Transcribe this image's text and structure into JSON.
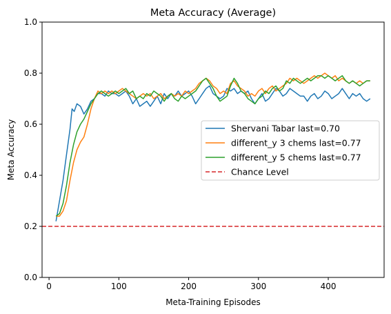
{
  "chart_data": {
    "type": "line",
    "title": "Meta Accuracy (Average)",
    "xlabel": "Meta-Training Episodes",
    "ylabel": "Meta Accuracy",
    "xlim": [
      -10,
      480
    ],
    "ylim": [
      0.0,
      1.0
    ],
    "xticks": [
      0,
      100,
      200,
      300,
      400
    ],
    "yticks": [
      0.0,
      0.2,
      0.4,
      0.6,
      0.8,
      1.0
    ],
    "xtick_labels": [
      "0",
      "100",
      "200",
      "300",
      "400"
    ],
    "ytick_labels": [
      "0.0",
      "0.2",
      "0.4",
      "0.6",
      "0.8",
      "1.0"
    ],
    "grid": false,
    "legend_position": "center-right",
    "series": [
      {
        "name": "Shervani Tabar last=0.70",
        "color": "#1f77b4",
        "x": [
          10,
          15,
          20,
          25,
          30,
          33,
          36,
          40,
          45,
          50,
          55,
          60,
          65,
          70,
          75,
          80,
          85,
          90,
          95,
          100,
          105,
          110,
          115,
          120,
          125,
          130,
          135,
          140,
          145,
          150,
          155,
          160,
          165,
          170,
          175,
          180,
          185,
          190,
          195,
          200,
          205,
          210,
          215,
          220,
          225,
          230,
          235,
          240,
          245,
          250,
          255,
          260,
          265,
          270,
          275,
          280,
          285,
          290,
          295,
          300,
          305,
          310,
          315,
          320,
          325,
          330,
          335,
          340,
          345,
          350,
          355,
          360,
          365,
          370,
          375,
          380,
          385,
          390,
          395,
          400,
          405,
          410,
          415,
          420,
          425,
          430,
          435,
          440,
          445,
          450,
          455,
          460
        ],
        "y": [
          0.22,
          0.3,
          0.38,
          0.48,
          0.58,
          0.66,
          0.65,
          0.68,
          0.67,
          0.64,
          0.66,
          0.69,
          0.7,
          0.72,
          0.72,
          0.71,
          0.73,
          0.72,
          0.72,
          0.71,
          0.72,
          0.73,
          0.71,
          0.68,
          0.7,
          0.67,
          0.68,
          0.69,
          0.67,
          0.69,
          0.71,
          0.68,
          0.72,
          0.7,
          0.72,
          0.71,
          0.73,
          0.71,
          0.72,
          0.73,
          0.71,
          0.68,
          0.7,
          0.72,
          0.74,
          0.75,
          0.72,
          0.71,
          0.7,
          0.71,
          0.74,
          0.73,
          0.74,
          0.72,
          0.73,
          0.72,
          0.73,
          0.7,
          0.68,
          0.7,
          0.72,
          0.69,
          0.7,
          0.72,
          0.74,
          0.73,
          0.71,
          0.72,
          0.74,
          0.73,
          0.72,
          0.71,
          0.71,
          0.69,
          0.71,
          0.72,
          0.7,
          0.71,
          0.73,
          0.72,
          0.7,
          0.71,
          0.72,
          0.74,
          0.72,
          0.7,
          0.72,
          0.71,
          0.72,
          0.7,
          0.69,
          0.7
        ]
      },
      {
        "name": "different_y 3 chems last=0.77",
        "color": "#ff7f0e",
        "x": [
          10,
          15,
          20,
          25,
          30,
          35,
          40,
          45,
          50,
          55,
          60,
          65,
          70,
          75,
          80,
          85,
          90,
          95,
          100,
          105,
          110,
          115,
          120,
          125,
          130,
          135,
          140,
          145,
          150,
          155,
          160,
          165,
          170,
          175,
          180,
          185,
          190,
          195,
          200,
          205,
          210,
          215,
          220,
          225,
          230,
          235,
          240,
          245,
          250,
          255,
          260,
          265,
          270,
          275,
          280,
          285,
          290,
          295,
          300,
          305,
          310,
          315,
          320,
          325,
          330,
          335,
          340,
          345,
          350,
          355,
          360,
          365,
          370,
          375,
          380,
          385,
          390,
          395,
          400,
          405,
          410,
          415,
          420,
          425,
          430,
          435,
          440,
          445,
          450,
          455,
          460
        ],
        "y": [
          0.24,
          0.24,
          0.26,
          0.3,
          0.38,
          0.45,
          0.5,
          0.53,
          0.55,
          0.6,
          0.66,
          0.7,
          0.73,
          0.72,
          0.73,
          0.72,
          0.73,
          0.72,
          0.73,
          0.74,
          0.73,
          0.72,
          0.71,
          0.7,
          0.71,
          0.72,
          0.71,
          0.72,
          0.7,
          0.71,
          0.72,
          0.7,
          0.71,
          0.72,
          0.71,
          0.72,
          0.71,
          0.73,
          0.72,
          0.73,
          0.74,
          0.76,
          0.77,
          0.78,
          0.77,
          0.75,
          0.74,
          0.72,
          0.73,
          0.72,
          0.76,
          0.77,
          0.75,
          0.74,
          0.73,
          0.71,
          0.72,
          0.71,
          0.73,
          0.74,
          0.72,
          0.74,
          0.75,
          0.73,
          0.74,
          0.75,
          0.76,
          0.78,
          0.77,
          0.78,
          0.77,
          0.76,
          0.77,
          0.78,
          0.79,
          0.78,
          0.79,
          0.8,
          0.79,
          0.78,
          0.79,
          0.77,
          0.78,
          0.77,
          0.76,
          0.77,
          0.76,
          0.77,
          0.76,
          0.77,
          0.77
        ]
      },
      {
        "name": "different_y 5 chems last=0.77",
        "color": "#2ca02c",
        "x": [
          10,
          15,
          20,
          25,
          30,
          35,
          40,
          45,
          50,
          55,
          60,
          65,
          70,
          75,
          80,
          85,
          90,
          95,
          100,
          105,
          110,
          115,
          120,
          125,
          130,
          135,
          140,
          145,
          150,
          155,
          160,
          165,
          170,
          175,
          180,
          185,
          190,
          195,
          200,
          205,
          210,
          215,
          220,
          225,
          230,
          235,
          240,
          245,
          250,
          255,
          260,
          265,
          270,
          275,
          280,
          285,
          290,
          295,
          300,
          305,
          310,
          315,
          320,
          325,
          330,
          335,
          340,
          345,
          350,
          355,
          360,
          365,
          370,
          375,
          380,
          385,
          390,
          395,
          400,
          405,
          410,
          415,
          420,
          425,
          430,
          435,
          440,
          445,
          450,
          455,
          460
        ],
        "y": [
          0.24,
          0.25,
          0.29,
          0.36,
          0.45,
          0.52,
          0.57,
          0.6,
          0.62,
          0.65,
          0.68,
          0.7,
          0.72,
          0.73,
          0.72,
          0.71,
          0.72,
          0.73,
          0.72,
          0.73,
          0.74,
          0.72,
          0.73,
          0.7,
          0.71,
          0.7,
          0.72,
          0.71,
          0.73,
          0.72,
          0.71,
          0.69,
          0.71,
          0.72,
          0.7,
          0.69,
          0.71,
          0.7,
          0.71,
          0.72,
          0.73,
          0.75,
          0.77,
          0.78,
          0.76,
          0.74,
          0.71,
          0.69,
          0.7,
          0.71,
          0.75,
          0.78,
          0.76,
          0.73,
          0.72,
          0.7,
          0.69,
          0.68,
          0.7,
          0.71,
          0.73,
          0.72,
          0.74,
          0.75,
          0.73,
          0.74,
          0.77,
          0.76,
          0.78,
          0.77,
          0.76,
          0.77,
          0.78,
          0.77,
          0.78,
          0.79,
          0.79,
          0.78,
          0.79,
          0.78,
          0.77,
          0.78,
          0.79,
          0.77,
          0.76,
          0.77,
          0.76,
          0.75,
          0.76,
          0.77,
          0.77
        ]
      },
      {
        "name": "Chance Level",
        "color": "#d62728",
        "dashed": true,
        "y_constant": 0.2
      }
    ]
  }
}
